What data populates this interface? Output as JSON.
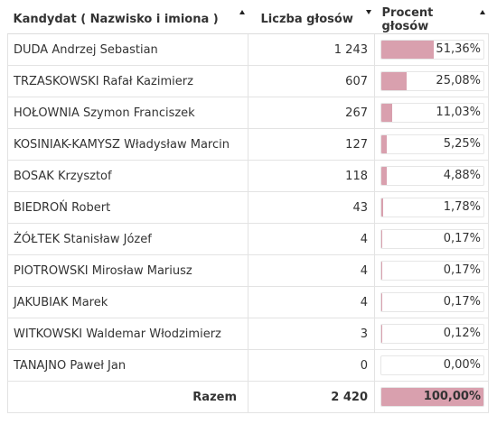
{
  "header": {
    "candidate": "Kandydat ( Nazwisko i imiona )",
    "votes": "Liczba głosów",
    "percent": "Procent głosów"
  },
  "rows": [
    {
      "name": "DUDA Andrzej Sebastian",
      "votes": "1 243",
      "percent": "51,36%",
      "fraction": 0.5136
    },
    {
      "name": "TRZASKOWSKI Rafał Kazimierz",
      "votes": "607",
      "percent": "25,08%",
      "fraction": 0.2508
    },
    {
      "name": "HOŁOWNIA Szymon Franciszek",
      "votes": "267",
      "percent": "11,03%",
      "fraction": 0.1103
    },
    {
      "name": "KOSINIAK-KAMYSZ Władysław Marcin",
      "votes": "127",
      "percent": "5,25%",
      "fraction": 0.0525
    },
    {
      "name": "BOSAK Krzysztof",
      "votes": "118",
      "percent": "4,88%",
      "fraction": 0.0488
    },
    {
      "name": "BIEDROŃ Robert",
      "votes": "43",
      "percent": "1,78%",
      "fraction": 0.0178
    },
    {
      "name": "ŻÓŁTEK Stanisław Józef",
      "votes": "4",
      "percent": "0,17%",
      "fraction": 0.0017
    },
    {
      "name": "PIOTROWSKI Mirosław Mariusz",
      "votes": "4",
      "percent": "0,17%",
      "fraction": 0.0017
    },
    {
      "name": "JAKUBIAK Marek",
      "votes": "4",
      "percent": "0,17%",
      "fraction": 0.0017
    },
    {
      "name": "WITKOWSKI Waldemar Włodzimierz",
      "votes": "3",
      "percent": "0,12%",
      "fraction": 0.0012
    },
    {
      "name": "TANAJNO Paweł Jan",
      "votes": "0",
      "percent": "0,00%",
      "fraction": 0.0
    }
  ],
  "total": {
    "label": "Razem",
    "votes": "2 420",
    "percent": "100,00%",
    "fraction": 1.0
  },
  "colors": {
    "bar": "#d9a0ae"
  }
}
